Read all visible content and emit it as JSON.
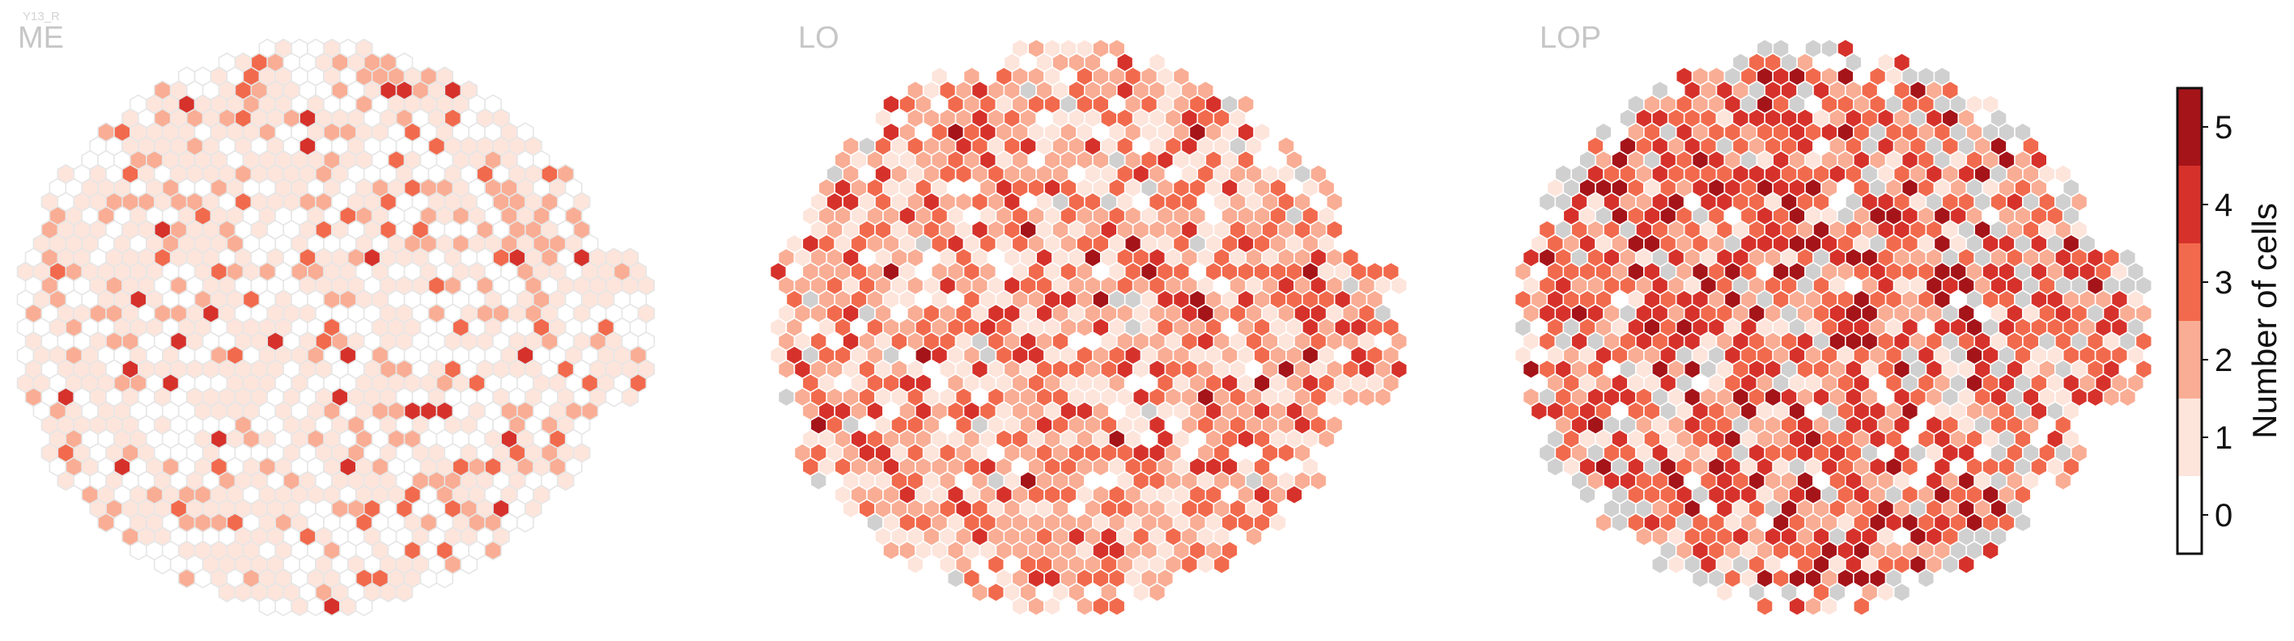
{
  "chart_data": {
    "type": "heatmap",
    "subtype": "hexagonal-column-map",
    "panels": [
      {
        "id": "me",
        "title": "ME",
        "subtitle": "Y13_R"
      },
      {
        "id": "lo",
        "title": "LO",
        "subtitle": ""
      },
      {
        "id": "lop",
        "title": "LOP",
        "subtitle": ""
      }
    ],
    "colorbar": {
      "label": "Number of cells",
      "ticks": [
        "0",
        "1",
        "2",
        "3",
        "4",
        "5"
      ],
      "range": [
        0,
        5
      ],
      "levels": [
        {
          "value": 0,
          "color": "#ffffff"
        },
        {
          "value": 1,
          "color": "#fde5dc"
        },
        {
          "value": 2,
          "color": "#f9ad94"
        },
        {
          "value": 3,
          "color": "#f26a4d"
        },
        {
          "value": 4,
          "color": "#d6322b"
        },
        {
          "value": 5,
          "color": "#a51419"
        }
      ],
      "missing_color": "#d0d0d0"
    }
  }
}
